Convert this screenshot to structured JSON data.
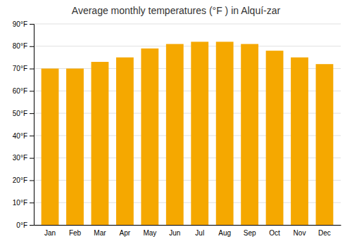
{
  "chart_data": {
    "type": "bar",
    "title": "Average monthly temperatures (°F ) in Alquí-zar",
    "categories": [
      "Jan",
      "Feb",
      "Mar",
      "Apr",
      "May",
      "Jun",
      "Jul",
      "Aug",
      "Sep",
      "Oct",
      "Nov",
      "Dec"
    ],
    "values": [
      70,
      70,
      73,
      75,
      79,
      81,
      82,
      82,
      81,
      78,
      75,
      72
    ],
    "color": "#F5A800",
    "ylim": [
      0,
      90
    ],
    "yticks": [
      {
        "value": 0,
        "label": "0°F"
      },
      {
        "value": 10,
        "label": "10°F"
      },
      {
        "value": 20,
        "label": "20°F"
      },
      {
        "value": 30,
        "label": "30°F"
      },
      {
        "value": 40,
        "label": "40°F"
      },
      {
        "value": 50,
        "label": "50°F"
      },
      {
        "value": 60,
        "label": "60°F"
      },
      {
        "value": 70,
        "label": "70°F"
      },
      {
        "value": 80,
        "label": "80°F"
      },
      {
        "value": 90,
        "label": "90°F"
      }
    ],
    "grid": true
  }
}
